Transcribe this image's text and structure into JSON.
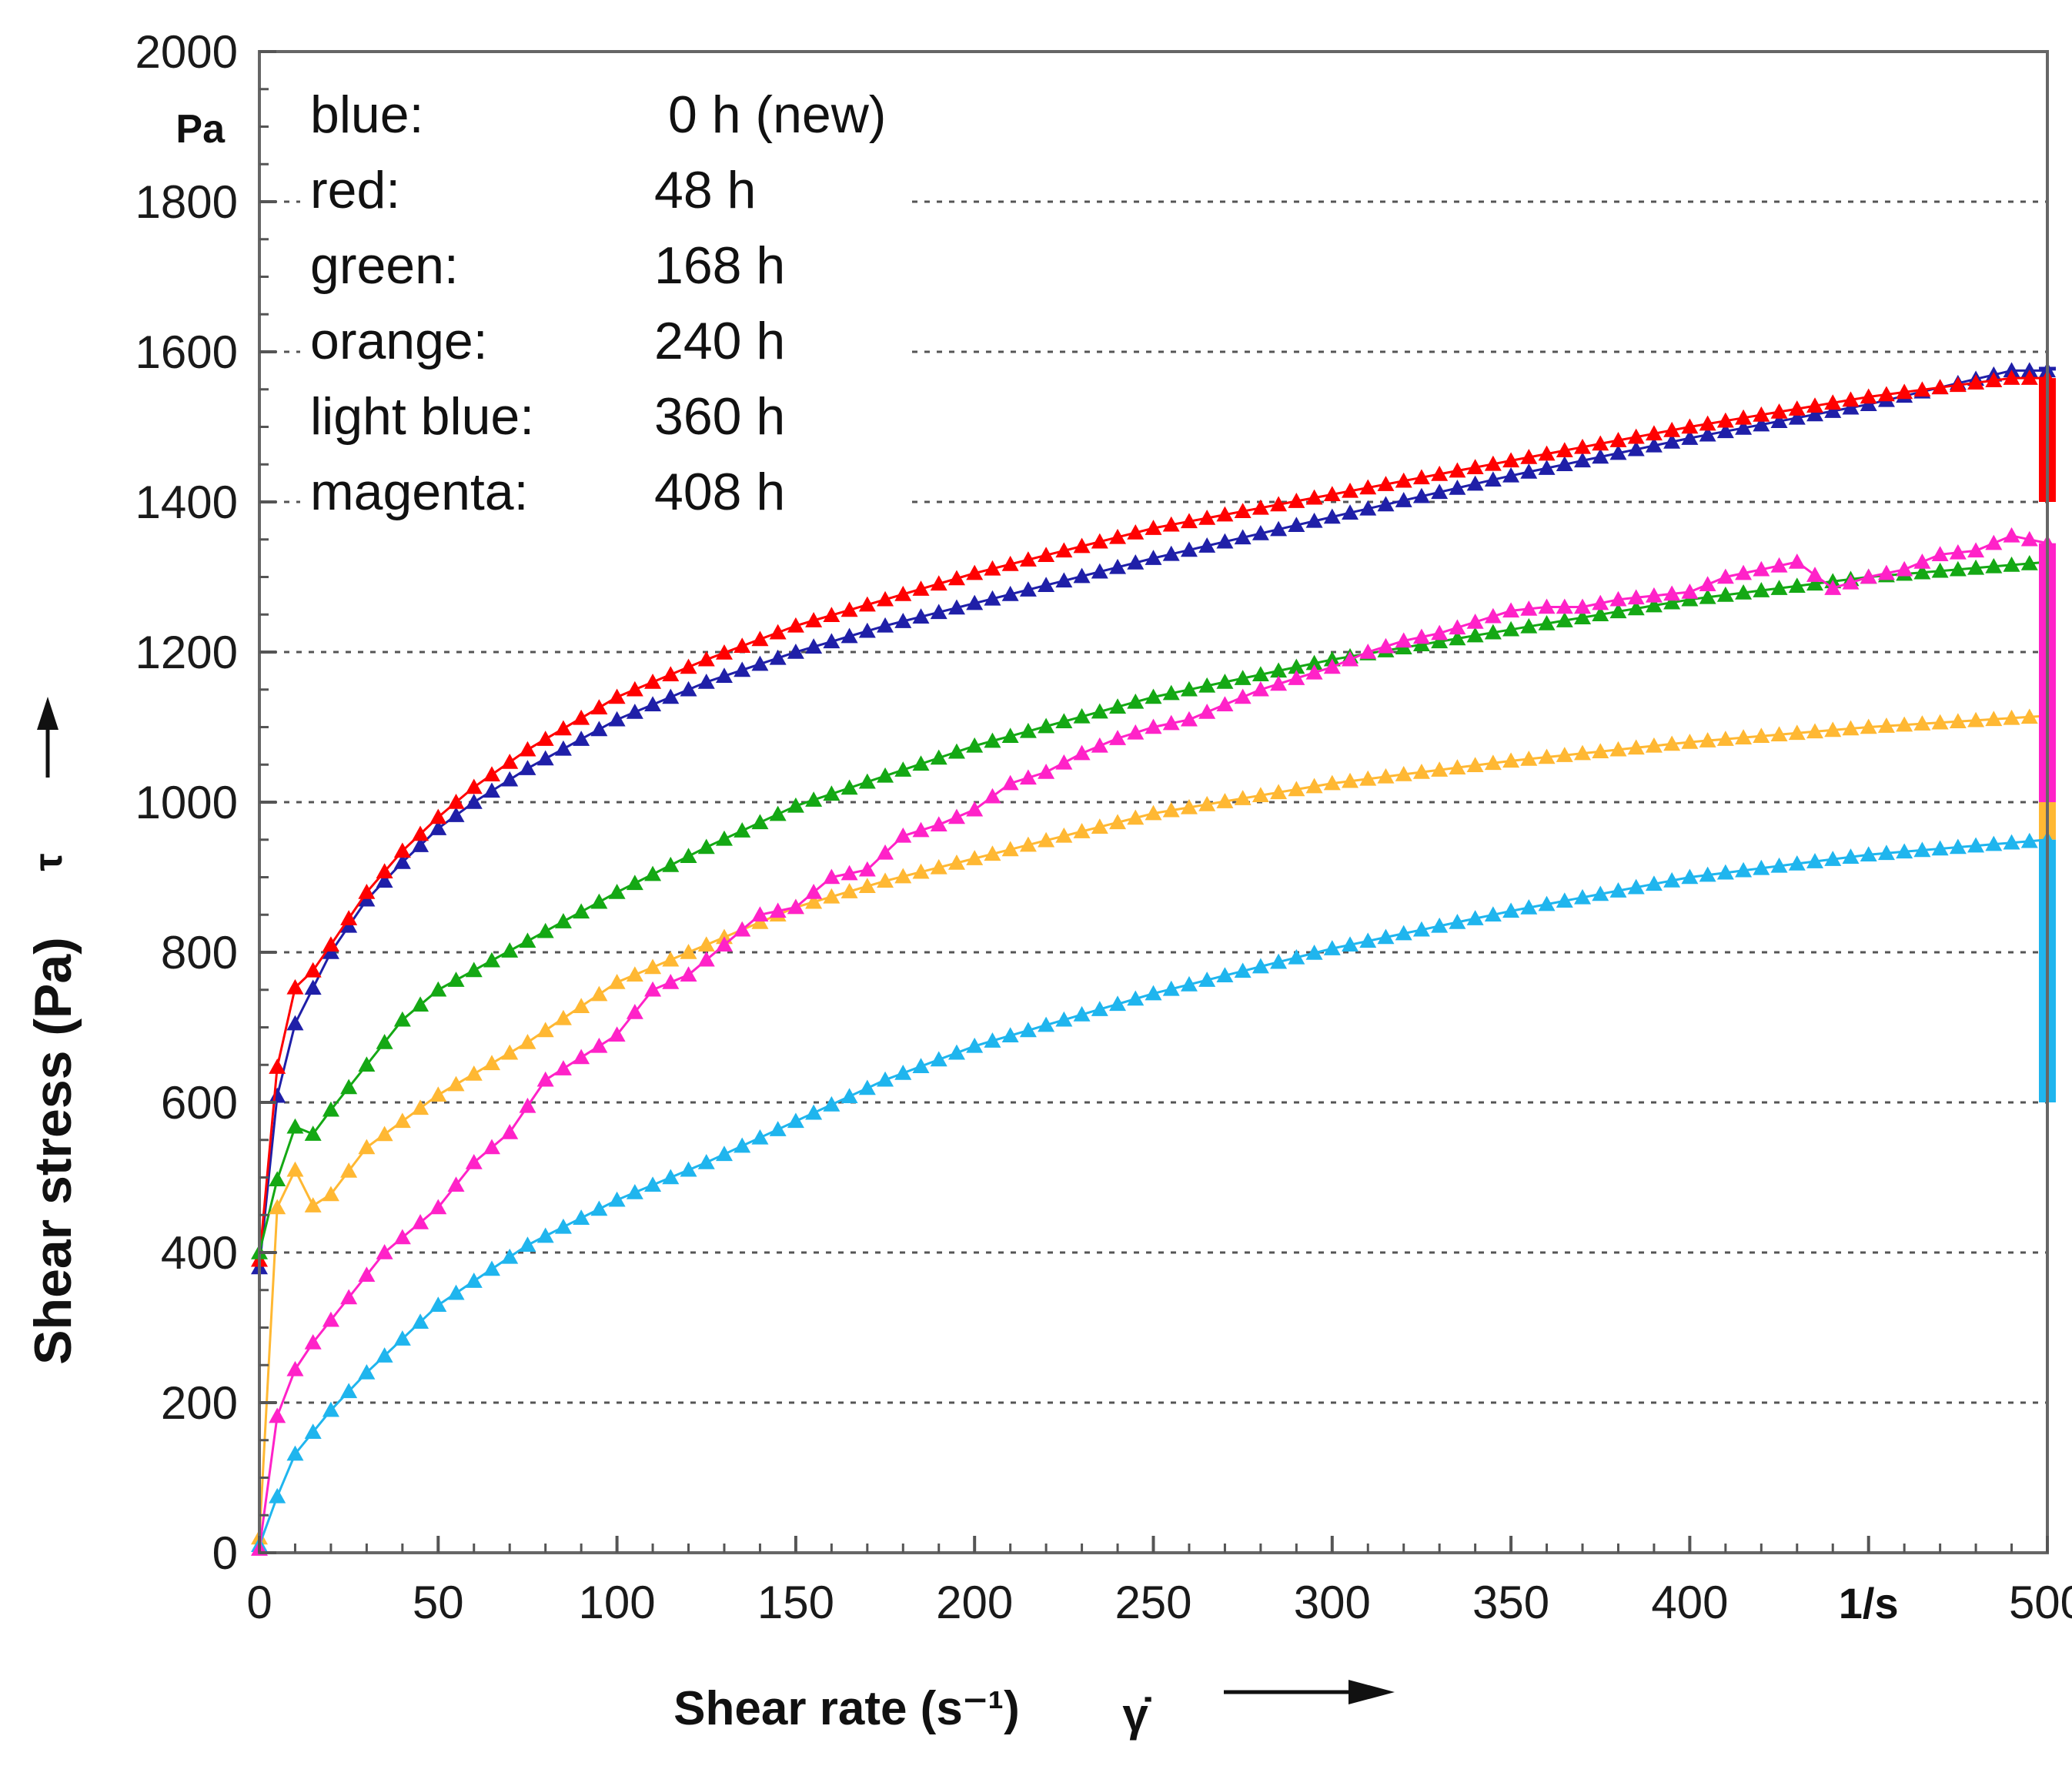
{
  "chart_data": {
    "type": "scatter",
    "title": "",
    "xlabel": "Shear rate (s⁻¹)",
    "xsymbol": "γ̇",
    "ylabel": "Shear stress (Pa)",
    "ysymbol": "τ",
    "xunit": "1/s",
    "yunit": "Pa",
    "xlim": [
      0,
      500
    ],
    "ylim": [
      0,
      2000
    ],
    "xticks": [
      "0",
      "50",
      "100",
      "150",
      "200",
      "250",
      "300",
      "350",
      "400",
      "1/s",
      "500"
    ],
    "yticks": [
      "0",
      "200",
      "400",
      "600",
      "800",
      "1000",
      "1200",
      "1400",
      "1600",
      "1800",
      "2000"
    ],
    "grid": "horizontal dotted",
    "legend": [
      {
        "color_name": "blue:",
        "label": "0 h (new)"
      },
      {
        "color_name": "red:",
        "label": "48 h"
      },
      {
        "color_name": "green:",
        "label": "168 h"
      },
      {
        "color_name": "orange:",
        "label": "240 h"
      },
      {
        "color_name": "light blue:",
        "label": "360 h"
      },
      {
        "color_name": "magenta:",
        "label": "408 h"
      }
    ],
    "series": [
      {
        "name": "0 h (new)",
        "color": "#1f1fa8",
        "points": [
          [
            0,
            380
          ],
          [
            7,
            700
          ],
          [
            10,
            705
          ],
          [
            20,
            800
          ],
          [
            30,
            870
          ],
          [
            40,
            920
          ],
          [
            50,
            965
          ],
          [
            60,
            1000
          ],
          [
            75,
            1045
          ],
          [
            100,
            1110
          ],
          [
            125,
            1160
          ],
          [
            150,
            1200
          ],
          [
            175,
            1235
          ],
          [
            200,
            1265
          ],
          [
            250,
            1325
          ],
          [
            300,
            1380
          ],
          [
            350,
            1435
          ],
          [
            400,
            1485
          ],
          [
            450,
            1530
          ],
          [
            490,
            1575
          ],
          [
            500,
            1575
          ]
        ],
        "drop_to": 1580
      },
      {
        "name": "48 h",
        "color": "#ff0000",
        "points": [
          [
            0,
            390
          ],
          [
            7,
            750
          ],
          [
            12,
            755
          ],
          [
            20,
            810
          ],
          [
            30,
            880
          ],
          [
            40,
            935
          ],
          [
            50,
            980
          ],
          [
            60,
            1020
          ],
          [
            75,
            1070
          ],
          [
            100,
            1140
          ],
          [
            125,
            1190
          ],
          [
            150,
            1235
          ],
          [
            175,
            1270
          ],
          [
            200,
            1305
          ],
          [
            250,
            1365
          ],
          [
            300,
            1410
          ],
          [
            350,
            1455
          ],
          [
            400,
            1500
          ],
          [
            450,
            1540
          ],
          [
            490,
            1565
          ],
          [
            500,
            1565
          ]
        ],
        "drop_to": 1400
      },
      {
        "name": "168 h",
        "color": "#14a814",
        "points": [
          [
            0,
            400
          ],
          [
            9,
            575
          ],
          [
            13,
            545
          ],
          [
            20,
            590
          ],
          [
            30,
            650
          ],
          [
            40,
            710
          ],
          [
            50,
            750
          ],
          [
            75,
            815
          ],
          [
            100,
            880
          ],
          [
            125,
            940
          ],
          [
            150,
            995
          ],
          [
            175,
            1035
          ],
          [
            200,
            1075
          ],
          [
            250,
            1140
          ],
          [
            300,
            1190
          ],
          [
            350,
            1230
          ],
          [
            400,
            1270
          ],
          [
            450,
            1300
          ],
          [
            500,
            1320
          ]
        ],
        "drop_to": 1000
      },
      {
        "name": "240 h",
        "color": "#ffb833",
        "points": [
          [
            0,
            20
          ],
          [
            2,
            360
          ],
          [
            8,
            560
          ],
          [
            12,
            460
          ],
          [
            18,
            465
          ],
          [
            30,
            540
          ],
          [
            50,
            610
          ],
          [
            75,
            680
          ],
          [
            100,
            760
          ],
          [
            125,
            810
          ],
          [
            150,
            860
          ],
          [
            175,
            895
          ],
          [
            200,
            925
          ],
          [
            250,
            985
          ],
          [
            300,
            1025
          ],
          [
            350,
            1055
          ],
          [
            400,
            1080
          ],
          [
            450,
            1100
          ],
          [
            500,
            1115
          ]
        ],
        "drop_to": 950
      },
      {
        "name": "360 h",
        "color": "#1fb5ee",
        "points": [
          [
            0,
            10
          ],
          [
            4,
            60
          ],
          [
            8,
            120
          ],
          [
            20,
            190
          ],
          [
            30,
            240
          ],
          [
            50,
            330
          ],
          [
            75,
            410
          ],
          [
            100,
            470
          ],
          [
            125,
            520
          ],
          [
            150,
            575
          ],
          [
            175,
            630
          ],
          [
            200,
            675
          ],
          [
            250,
            745
          ],
          [
            300,
            805
          ],
          [
            350,
            855
          ],
          [
            400,
            900
          ],
          [
            450,
            930
          ],
          [
            500,
            950
          ]
        ],
        "drop_to": 600
      },
      {
        "name": "408 h",
        "color": "#ff22c8",
        "points": [
          [
            0,
            5
          ],
          [
            3,
            150
          ],
          [
            8,
            230
          ],
          [
            15,
            280
          ],
          [
            25,
            340
          ],
          [
            35,
            400
          ],
          [
            50,
            460
          ],
          [
            60,
            520
          ],
          [
            70,
            560
          ],
          [
            80,
            630
          ],
          [
            90,
            660
          ],
          [
            100,
            690
          ],
          [
            110,
            750
          ],
          [
            120,
            770
          ],
          [
            130,
            810
          ],
          [
            140,
            850
          ],
          [
            150,
            860
          ],
          [
            160,
            900
          ],
          [
            170,
            910
          ],
          [
            180,
            955
          ],
          [
            190,
            970
          ],
          [
            200,
            990
          ],
          [
            210,
            1025
          ],
          [
            220,
            1040
          ],
          [
            230,
            1065
          ],
          [
            240,
            1085
          ],
          [
            250,
            1100
          ],
          [
            260,
            1110
          ],
          [
            270,
            1130
          ],
          [
            280,
            1150
          ],
          [
            290,
            1165
          ],
          [
            300,
            1180
          ],
          [
            310,
            1200
          ],
          [
            320,
            1215
          ],
          [
            330,
            1225
          ],
          [
            340,
            1240
          ],
          [
            350,
            1255
          ],
          [
            360,
            1260
          ],
          [
            370,
            1260
          ],
          [
            380,
            1270
          ],
          [
            390,
            1275
          ],
          [
            400,
            1280
          ],
          [
            410,
            1300
          ],
          [
            420,
            1310
          ],
          [
            430,
            1320
          ],
          [
            440,
            1285
          ],
          [
            450,
            1300
          ],
          [
            460,
            1310
          ],
          [
            470,
            1330
          ],
          [
            480,
            1335
          ],
          [
            490,
            1355
          ],
          [
            500,
            1345
          ]
        ],
        "drop_to": 1000
      }
    ]
  }
}
